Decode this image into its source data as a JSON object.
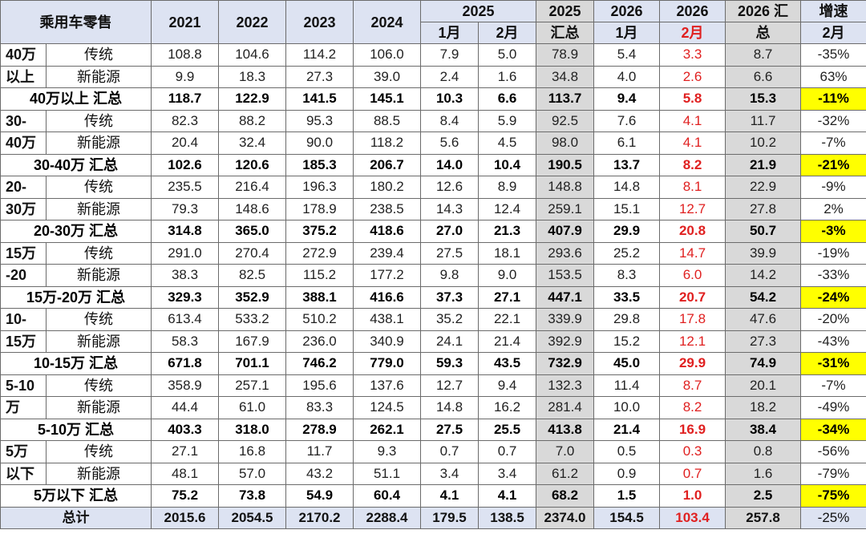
{
  "headers": {
    "title": "乘用车零售",
    "y2021": "2021",
    "y2022": "2022",
    "y2023": "2023",
    "y2024": "2024",
    "y2025": "2025",
    "m2025_1": "1月",
    "m2025_2": "2月",
    "y2025_total_top": "2025",
    "y2025_total_bottom": "汇总",
    "y2026": "2026",
    "m2026_1": "1月",
    "y2026b": "2026",
    "m2026_2": "2月",
    "y2026_total_top": "2026 汇",
    "y2026_total_bottom": "总",
    "growth_top": "增速",
    "growth_bottom": "2月"
  },
  "groups": [
    {
      "cat1": "40万",
      "cat2": "以上",
      "rows": [
        {
          "type": "传统",
          "v": [
            "108.8",
            "104.6",
            "114.2",
            "106.0",
            "7.9",
            "5.0",
            "78.9",
            "5.4",
            "3.3",
            "8.7",
            "-35%"
          ]
        },
        {
          "type": "新能源",
          "v": [
            "9.9",
            "18.3",
            "27.3",
            "39.0",
            "2.4",
            "1.6",
            "34.8",
            "4.0",
            "2.6",
            "6.6",
            "63%"
          ]
        }
      ],
      "sum_label": "40万以上 汇总",
      "sum": [
        "118.7",
        "122.9",
        "141.5",
        "145.1",
        "10.3",
        "6.6",
        "113.7",
        "9.4",
        "5.8",
        "15.3",
        "-11%"
      ]
    },
    {
      "cat1": "30-",
      "cat2": "40万",
      "rows": [
        {
          "type": "传统",
          "v": [
            "82.3",
            "88.2",
            "95.3",
            "88.5",
            "8.4",
            "5.9",
            "92.5",
            "7.6",
            "4.1",
            "11.7",
            "-32%"
          ]
        },
        {
          "type": "新能源",
          "v": [
            "20.4",
            "32.4",
            "90.0",
            "118.2",
            "5.6",
            "4.5",
            "98.0",
            "6.1",
            "4.1",
            "10.2",
            "-7%"
          ]
        }
      ],
      "sum_label": "30-40万 汇总",
      "sum": [
        "102.6",
        "120.6",
        "185.3",
        "206.7",
        "14.0",
        "10.4",
        "190.5",
        "13.7",
        "8.2",
        "21.9",
        "-21%"
      ]
    },
    {
      "cat1": "20-",
      "cat2": "30万",
      "rows": [
        {
          "type": "传统",
          "v": [
            "235.5",
            "216.4",
            "196.3",
            "180.2",
            "12.6",
            "8.9",
            "148.8",
            "14.8",
            "8.1",
            "22.9",
            "-9%"
          ]
        },
        {
          "type": "新能源",
          "v": [
            "79.3",
            "148.6",
            "178.9",
            "238.5",
            "14.3",
            "12.4",
            "259.1",
            "15.1",
            "12.7",
            "27.8",
            "2%"
          ]
        }
      ],
      "sum_label": "20-30万 汇总",
      "sum": [
        "314.8",
        "365.0",
        "375.2",
        "418.6",
        "27.0",
        "21.3",
        "407.9",
        "29.9",
        "20.8",
        "50.7",
        "-3%"
      ]
    },
    {
      "cat1": "15万",
      "cat2": "-20",
      "rows": [
        {
          "type": "传统",
          "v": [
            "291.0",
            "270.4",
            "272.9",
            "239.4",
            "27.5",
            "18.1",
            "293.6",
            "25.2",
            "14.7",
            "39.9",
            "-19%"
          ]
        },
        {
          "type": "新能源",
          "v": [
            "38.3",
            "82.5",
            "115.2",
            "177.2",
            "9.8",
            "9.0",
            "153.5",
            "8.3",
            "6.0",
            "14.2",
            "-33%"
          ]
        }
      ],
      "sum_label": "15万-20万 汇总",
      "sum": [
        "329.3",
        "352.9",
        "388.1",
        "416.6",
        "37.3",
        "27.1",
        "447.1",
        "33.5",
        "20.7",
        "54.2",
        "-24%"
      ]
    },
    {
      "cat1": "10-",
      "cat2": "15万",
      "rows": [
        {
          "type": "传统",
          "v": [
            "613.4",
            "533.2",
            "510.2",
            "438.1",
            "35.2",
            "22.1",
            "339.9",
            "29.8",
            "17.8",
            "47.6",
            "-20%"
          ]
        },
        {
          "type": "新能源",
          "v": [
            "58.3",
            "167.9",
            "236.0",
            "340.9",
            "24.1",
            "21.4",
            "392.9",
            "15.2",
            "12.1",
            "27.3",
            "-43%"
          ]
        }
      ],
      "sum_label": "10-15万 汇总",
      "sum": [
        "671.8",
        "701.1",
        "746.2",
        "779.0",
        "59.3",
        "43.5",
        "732.9",
        "45.0",
        "29.9",
        "74.9",
        "-31%"
      ]
    },
    {
      "cat1": "5-10",
      "cat2": "万",
      "rows": [
        {
          "type": "传统",
          "v": [
            "358.9",
            "257.1",
            "195.6",
            "137.6",
            "12.7",
            "9.4",
            "132.3",
            "11.4",
            "8.7",
            "20.1",
            "-7%"
          ]
        },
        {
          "type": "新能源",
          "v": [
            "44.4",
            "61.0",
            "83.3",
            "124.5",
            "14.8",
            "16.2",
            "281.4",
            "10.0",
            "8.2",
            "18.2",
            "-49%"
          ]
        }
      ],
      "sum_label": "5-10万 汇总",
      "sum": [
        "403.3",
        "318.0",
        "278.9",
        "262.1",
        "27.5",
        "25.5",
        "413.8",
        "21.4",
        "16.9",
        "38.4",
        "-34%"
      ]
    },
    {
      "cat1": "5万",
      "cat2": "以下",
      "rows": [
        {
          "type": "传统",
          "v": [
            "27.1",
            "16.8",
            "11.7",
            "9.3",
            "0.7",
            "0.7",
            "7.0",
            "0.5",
            "0.3",
            "0.8",
            "-56%"
          ]
        },
        {
          "type": "新能源",
          "v": [
            "48.1",
            "57.0",
            "43.2",
            "51.1",
            "3.4",
            "3.4",
            "61.2",
            "0.9",
            "0.7",
            "1.6",
            "-79%"
          ]
        }
      ],
      "sum_label": "5万以下 汇总",
      "sum": [
        "75.2",
        "73.8",
        "54.9",
        "60.4",
        "4.1",
        "4.1",
        "68.2",
        "1.5",
        "1.0",
        "2.5",
        "-75%"
      ]
    }
  ],
  "total": {
    "label": "总计",
    "v": [
      "2015.6",
      "2054.5",
      "2170.2",
      "2288.4",
      "179.5",
      "138.5",
      "2374.0",
      "154.5",
      "103.4",
      "257.8",
      "-25%"
    ]
  },
  "colors": {
    "header_bg": "#dde3f2",
    "highlight_gray": "#d9d9d9",
    "highlight_yellow": "#ffff00",
    "accent_red": "#e02020"
  }
}
